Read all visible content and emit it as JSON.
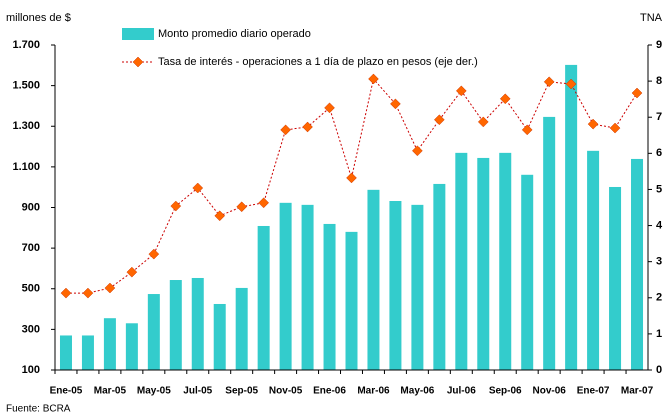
{
  "chart_data": {
    "type": "bar_line",
    "y_label": "millones de $",
    "y2_label": "TNA",
    "source": "Fuente: BCRA",
    "categories": [
      "Ene-05",
      null,
      "Mar-05",
      null,
      "May-05",
      null,
      "Jul-05",
      null,
      "Sep-05",
      null,
      "Nov-05",
      null,
      "Ene-06",
      null,
      "Mar-06",
      null,
      "May-06",
      null,
      "Jul-06",
      null,
      "Sep-06",
      null,
      "Nov-06",
      null,
      "Ene-07",
      null,
      "Mar-07"
    ],
    "series": [
      {
        "name": "Monto promedio diario operado",
        "color": "#33cccc",
        "type": "bar",
        "values": [
          270,
          270,
          355,
          330,
          474,
          543,
          553,
          425,
          504,
          809,
          923,
          913,
          819,
          780,
          987,
          932,
          913,
          1016,
          1169,
          1144,
          1169,
          1061,
          1346,
          1602,
          1179,
          1001,
          1139
        ]
      },
      {
        "name": "Tasa de interés - operaciones a 1 día de plazo en pesos (eje der.)",
        "color": "#ff6600",
        "type": "line",
        "axis": "y2",
        "values": [
          2.13,
          2.13,
          2.27,
          2.71,
          3.21,
          4.54,
          5.04,
          4.27,
          4.52,
          4.63,
          6.65,
          6.73,
          7.26,
          5.32,
          8.06,
          7.37,
          6.07,
          6.93,
          7.73,
          6.87,
          7.51,
          6.65,
          7.98,
          7.92,
          6.81,
          6.7,
          7.67
        ]
      }
    ],
    "ylim": [
      100,
      1700
    ],
    "yticks": [
      100,
      300,
      500,
      700,
      900,
      {
        "value": 1100,
        "label": "1.100"
      },
      {
        "value": 1300,
        "label": "1.300"
      },
      {
        "value": 1500,
        "label": "1.500"
      },
      {
        "value": 1700,
        "label": "1.700"
      }
    ],
    "y2lim": [
      0,
      9
    ],
    "y2ticks": [
      0,
      1,
      2,
      3,
      4,
      5,
      6,
      7,
      8,
      9
    ]
  }
}
